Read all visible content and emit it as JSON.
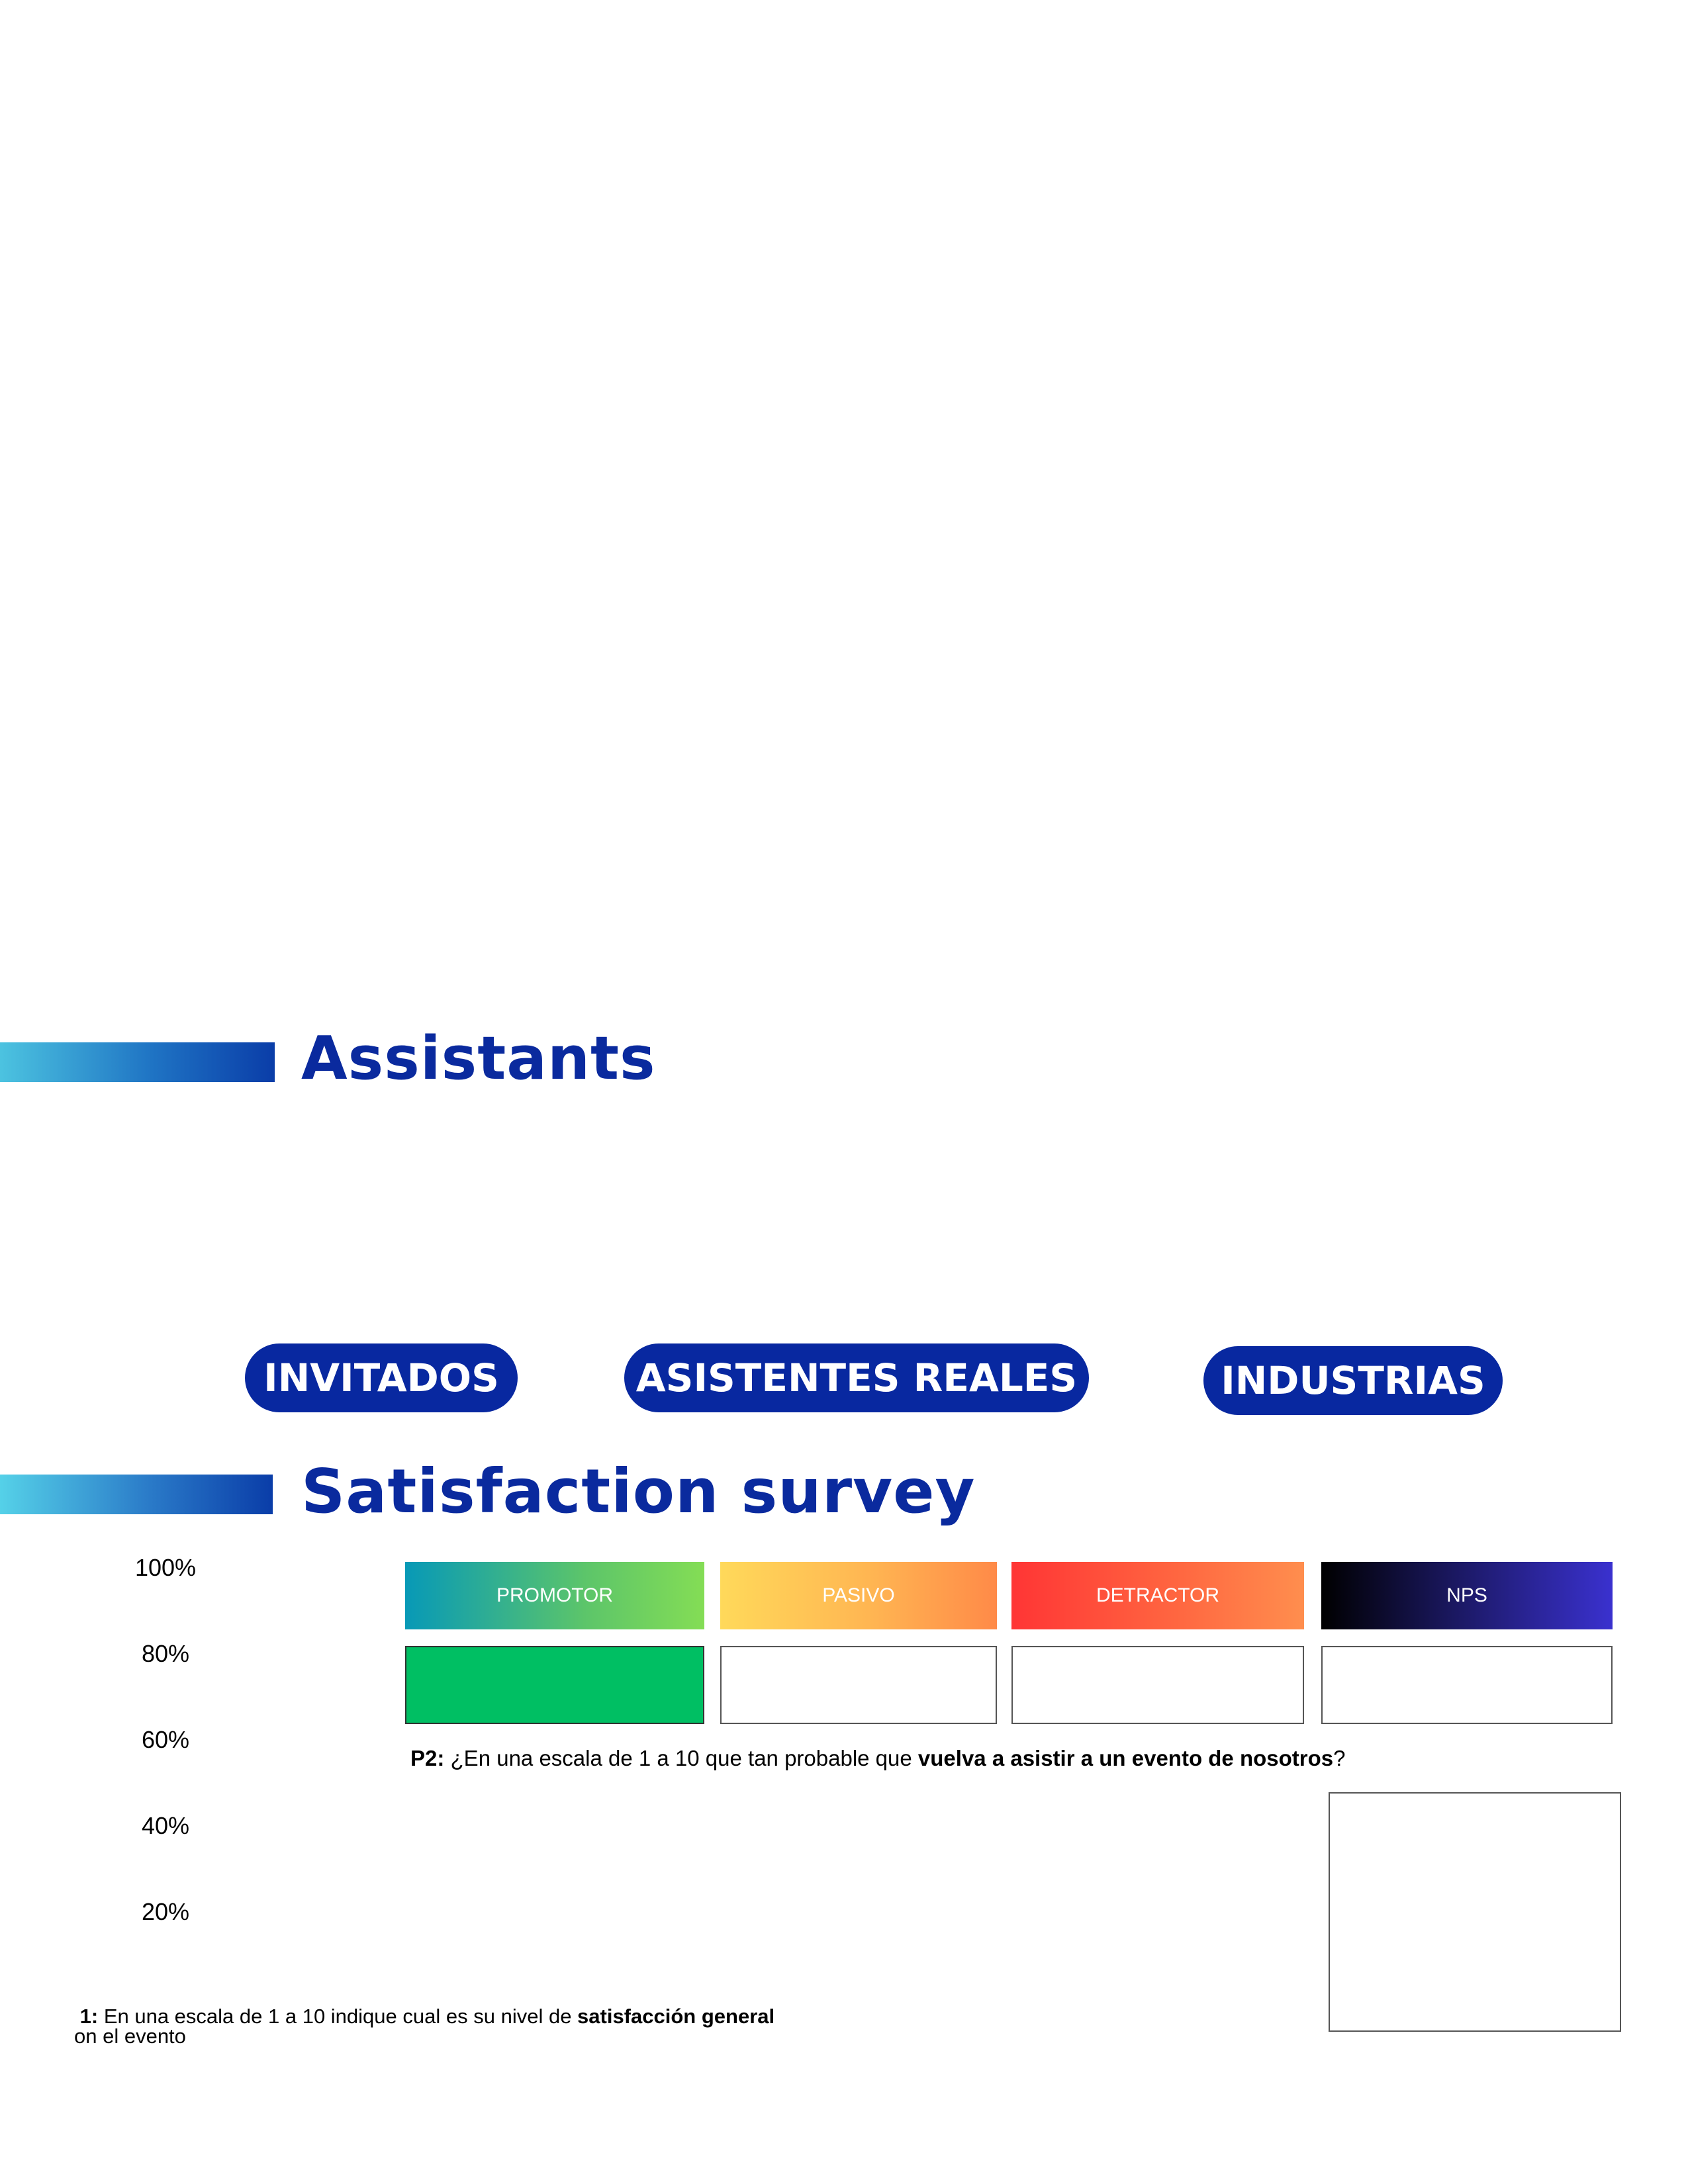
{
  "sections": {
    "assistants_title": "Assistants",
    "survey_title": "Satisfaction survey"
  },
  "pills": {
    "invitados": "INVITADOS",
    "asistentes": "ASISTENTES REALES",
    "industrias": "INDUSTRIAS"
  },
  "y_axis": [
    "100%",
    "80%",
    "60%",
    "40%",
    "20%"
  ],
  "nps": {
    "categories": [
      "PROMOTOR",
      "PASIVO",
      "DETRACTOR",
      "NPS"
    ]
  },
  "questions": {
    "p2_prefix": "P2:",
    "p2_text": " ¿En una escala de 1 a 10 que tan probable que ",
    "p2_bold": "vuelva a asistir a un evento de nosotros",
    "p2_end": "?",
    "p1_prefix": "1:",
    "p1_text": " En una escala de 1 a 10 indique cual es su nivel de ",
    "p1_bold": "satisfacción general",
    "p1_line2": "on el evento"
  },
  "colors": {
    "heading": "#0a2a9e",
    "pill": "#0828a0",
    "promotor_fill": "#00bf63"
  }
}
